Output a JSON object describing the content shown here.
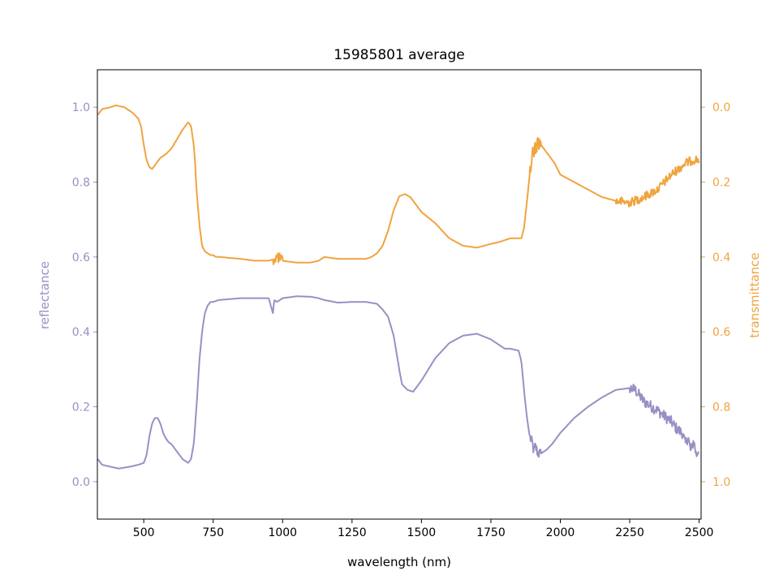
{
  "chart_data": {
    "type": "line",
    "title": "15985801 average",
    "xlabel": "wavelength (nm)",
    "ylabel_left": "reflectance",
    "ylabel_right": "transmittance",
    "xlim": [
      333,
      2507
    ],
    "ylim_left": [
      -0.1,
      1.1
    ],
    "ylim_right": [
      1.1,
      -0.1
    ],
    "right_axis_inverted": true,
    "grid": false,
    "xticks": [
      500,
      750,
      1000,
      1250,
      1500,
      1750,
      2000,
      2250,
      2500
    ],
    "xtick_labels": [
      "500",
      "750",
      "1000",
      "1250",
      "1500",
      "1750",
      "2000",
      "2250",
      "2500"
    ],
    "yticks_left": [
      0.0,
      0.2,
      0.4,
      0.6,
      0.8,
      1.0
    ],
    "ytick_labels_left": [
      "0.0",
      "0.2",
      "0.4",
      "0.6",
      "0.8",
      "1.0"
    ],
    "yticks_right": [
      0.0,
      0.2,
      0.4,
      0.6,
      0.8,
      1.0
    ],
    "ytick_labels_right": [
      "0.0",
      "0.2",
      "0.4",
      "0.6",
      "0.8",
      "1.0"
    ],
    "colors": {
      "reflectance": "#9890c4",
      "transmittance": "#f0a43e"
    },
    "series": [
      {
        "axis": "left",
        "x": [
          335,
          350,
          380,
          410,
          450,
          480,
          500,
          510,
          520,
          530,
          540,
          550,
          560,
          570,
          580,
          590,
          600,
          620,
          640,
          650,
          660,
          670,
          680,
          690,
          700,
          710,
          720,
          730,
          740,
          750,
          770,
          800,
          850,
          900,
          950,
          965,
          970,
          980,
          1000,
          1020,
          1050,
          1100,
          1130,
          1150,
          1200,
          1250,
          1300,
          1340,
          1360,
          1380,
          1400,
          1420,
          1430,
          1450,
          1470,
          1500,
          1550,
          1600,
          1650,
          1700,
          1750,
          1780,
          1800,
          1820,
          1850,
          1860,
          1870,
          1880,
          1890,
          1900,
          1905,
          1910,
          1920,
          1930,
          1950,
          1970,
          2000,
          2050,
          2100,
          2150,
          2200,
          2250,
          2270,
          2300,
          2350,
          2400,
          2420,
          2440,
          2450,
          2460,
          2470,
          2480,
          2490,
          2500
        ],
        "y": [
          0.06,
          0.045,
          0.04,
          0.035,
          0.04,
          0.045,
          0.05,
          0.07,
          0.12,
          0.155,
          0.17,
          0.17,
          0.155,
          0.13,
          0.115,
          0.105,
          0.1,
          0.08,
          0.06,
          0.055,
          0.05,
          0.06,
          0.1,
          0.2,
          0.32,
          0.4,
          0.45,
          0.47,
          0.48,
          0.48,
          0.485,
          0.487,
          0.49,
          0.49,
          0.49,
          0.45,
          0.485,
          0.48,
          0.49,
          0.492,
          0.495,
          0.494,
          0.49,
          0.485,
          0.478,
          0.48,
          0.48,
          0.475,
          0.46,
          0.44,
          0.39,
          0.3,
          0.26,
          0.245,
          0.24,
          0.27,
          0.33,
          0.37,
          0.39,
          0.395,
          0.38,
          0.365,
          0.355,
          0.355,
          0.35,
          0.32,
          0.24,
          0.17,
          0.12,
          0.1,
          0.08,
          0.095,
          0.075,
          0.075,
          0.085,
          0.1,
          0.13,
          0.17,
          0.2,
          0.225,
          0.245,
          0.25,
          0.245,
          0.215,
          0.19,
          0.16,
          0.14,
          0.13,
          0.1,
          0.12,
          0.08,
          0.11,
          0.07,
          0.09
        ],
        "noise": [
          {
            "from": 1890,
            "to": 1930,
            "amp": 0.015
          },
          {
            "from": 2250,
            "to": 2500,
            "amp": 0.015
          }
        ]
      },
      {
        "axis": "right",
        "x": [
          335,
          350,
          380,
          400,
          430,
          460,
          480,
          490,
          500,
          510,
          520,
          530,
          540,
          550,
          560,
          570,
          580,
          600,
          620,
          640,
          660,
          670,
          680,
          685,
          690,
          700,
          710,
          720,
          730,
          740,
          750,
          760,
          780,
          800,
          850,
          900,
          950,
          970,
          980,
          1000,
          1050,
          1100,
          1130,
          1150,
          1200,
          1250,
          1300,
          1320,
          1340,
          1360,
          1380,
          1400,
          1420,
          1440,
          1460,
          1480,
          1500,
          1550,
          1600,
          1650,
          1700,
          1750,
          1780,
          1800,
          1820,
          1850,
          1860,
          1870,
          1880,
          1890,
          1900,
          1910,
          1920,
          1930,
          1950,
          1980,
          2000,
          2050,
          2100,
          2150,
          2200,
          2250,
          2300,
          2350,
          2400,
          2450,
          2480,
          2500
        ],
        "y": [
          0.02,
          0.005,
          0.0,
          -0.005,
          0.0,
          0.015,
          0.03,
          0.05,
          0.1,
          0.14,
          0.16,
          0.165,
          0.155,
          0.145,
          0.135,
          0.13,
          0.125,
          0.11,
          0.085,
          0.06,
          0.04,
          0.05,
          0.1,
          0.15,
          0.22,
          0.31,
          0.37,
          0.385,
          0.39,
          0.395,
          0.395,
          0.4,
          0.4,
          0.402,
          0.405,
          0.41,
          0.41,
          0.405,
          0.4,
          0.41,
          0.415,
          0.415,
          0.41,
          0.4,
          0.405,
          0.405,
          0.405,
          0.4,
          0.39,
          0.37,
          0.33,
          0.275,
          0.238,
          0.232,
          0.24,
          0.26,
          0.28,
          0.31,
          0.35,
          0.37,
          0.375,
          0.365,
          0.36,
          0.355,
          0.35,
          0.35,
          0.35,
          0.32,
          0.25,
          0.18,
          0.12,
          0.11,
          0.09,
          0.1,
          0.12,
          0.15,
          0.18,
          0.2,
          0.22,
          0.24,
          0.25,
          0.255,
          0.24,
          0.22,
          0.18,
          0.15,
          0.14,
          0.14
        ],
        "noise": [
          {
            "from": 965,
            "to": 1000,
            "amp": 0.015
          },
          {
            "from": 1890,
            "to": 1930,
            "amp": 0.02
          },
          {
            "from": 2200,
            "to": 2500,
            "amp": 0.012
          }
        ]
      }
    ]
  }
}
